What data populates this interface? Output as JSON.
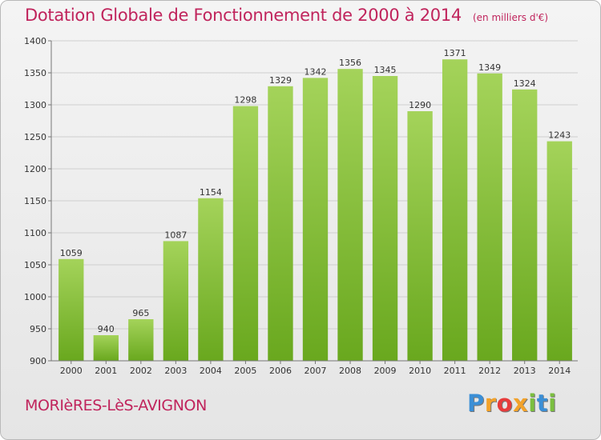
{
  "header": {
    "title": "Dotation Globale de Fonctionnement de 2000 à 2014",
    "unit": "(en milliers d'€)"
  },
  "footer": {
    "commune": "MORIèRES-LèS-AVIGNON",
    "logo_letters": [
      "P",
      "r",
      "o",
      "x",
      "i",
      "t",
      "i"
    ],
    "logo_colors": [
      "#3b8fd6",
      "#f2a22a",
      "#e73b3b",
      "#f2a22a",
      "#7bbf3f",
      "#3b8fd6",
      "#7bbf3f"
    ]
  },
  "chart_data": {
    "type": "bar",
    "categories": [
      "2000",
      "2001",
      "2002",
      "2003",
      "2004",
      "2005",
      "2006",
      "2007",
      "2008",
      "2009",
      "2010",
      "2011",
      "2012",
      "2013",
      "2014"
    ],
    "values": [
      1059,
      940,
      965,
      1087,
      1154,
      1298,
      1329,
      1342,
      1356,
      1345,
      1290,
      1371,
      1349,
      1324,
      1243
    ],
    "ylim": [
      900,
      1400
    ],
    "yticks": [
      900,
      950,
      1000,
      1050,
      1100,
      1150,
      1200,
      1250,
      1300,
      1350,
      1400
    ],
    "grid": true,
    "bar_color_light": "#a4d35a",
    "bar_color_dark": "#69a81e"
  }
}
